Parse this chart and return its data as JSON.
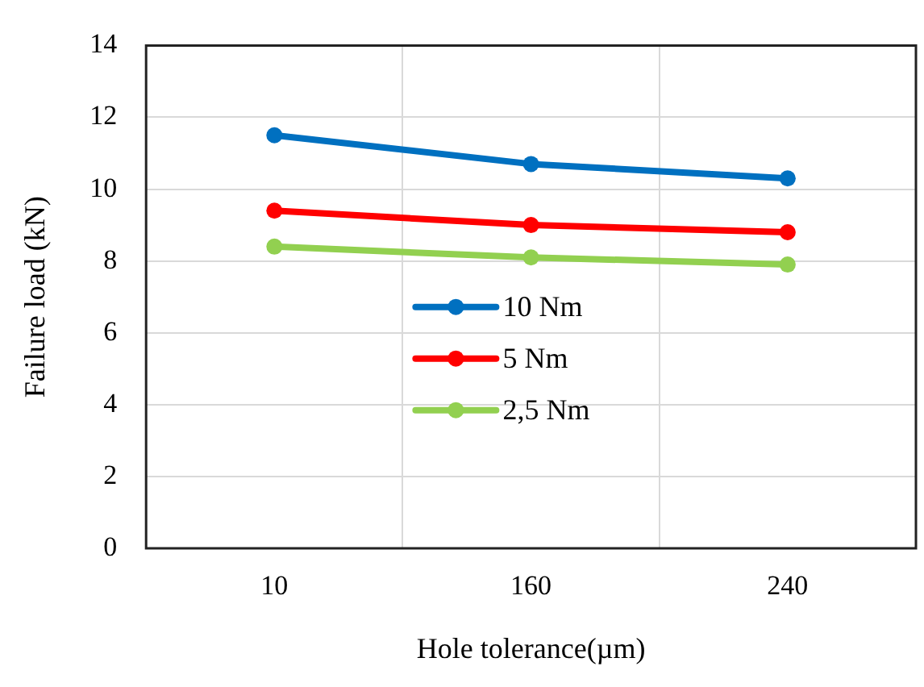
{
  "chart_data": {
    "type": "line",
    "xlabel": "Hole tolerance(µm)",
    "ylabel": "Failure load (kN)",
    "categories": [
      "10",
      "160",
      "240"
    ],
    "series": [
      {
        "name": "10 Nm",
        "color": "#0070c0",
        "values": [
          11.5,
          10.7,
          10.3
        ]
      },
      {
        "name": "5 Nm",
        "color": "#ff0000",
        "values": [
          9.4,
          9.0,
          8.8
        ]
      },
      {
        "name": "2,5 Nm",
        "color": "#92d050",
        "values": [
          8.4,
          8.1,
          7.9
        ]
      }
    ],
    "ylim": [
      0,
      14
    ],
    "yticks": [
      0,
      2,
      4,
      6,
      8,
      10,
      12,
      14
    ],
    "grid": true,
    "legend": "center",
    "marker": "circle",
    "line_style": "solid"
  }
}
